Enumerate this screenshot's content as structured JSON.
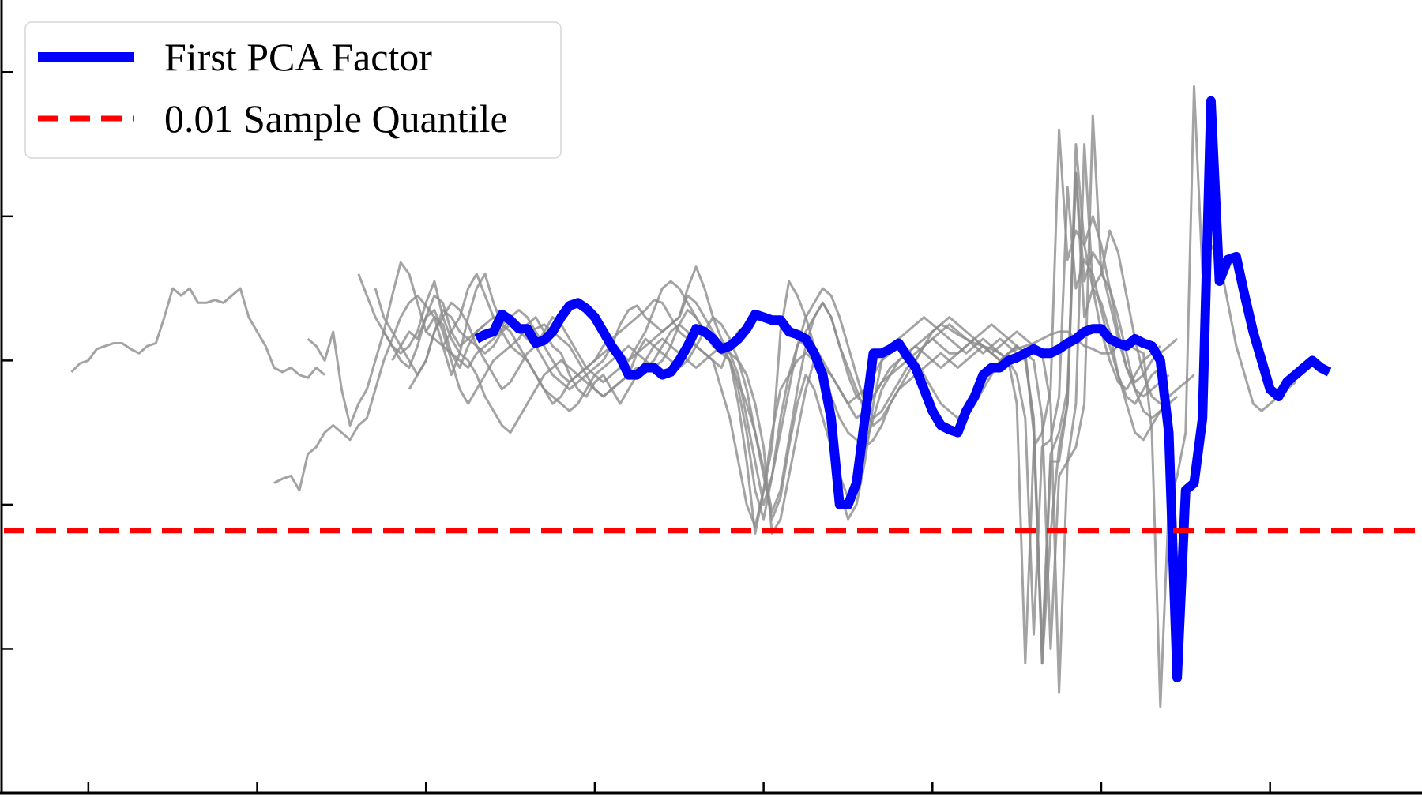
{
  "chart_data": {
    "type": "line",
    "title": "",
    "xlabel": "",
    "ylabel": "",
    "x_range": [
      0,
      168
    ],
    "ylim": [
      -3.0,
      2.5
    ],
    "y_ticks": [
      -3.0,
      -2.0,
      -1.0,
      0.0,
      1.0,
      2.0
    ],
    "x_ticks": [
      10,
      30,
      50,
      70,
      90,
      110,
      130,
      150
    ],
    "grid": false,
    "legend": {
      "placement": "top-left",
      "entries": [
        {
          "label": "First PCA Factor",
          "color": "#0000ff",
          "style": "solid"
        },
        {
          "label": "0.01 Sample Quantile",
          "color": "#ff0000",
          "style": "dashed"
        }
      ]
    },
    "quantile_line": {
      "name": "0.01 Sample Quantile",
      "y": -1.18,
      "color": "#ff0000"
    },
    "series": [
      {
        "name": "First PCA Factor",
        "color": "#0000ff",
        "x_start": 56,
        "values": [
          0.15,
          0.18,
          0.2,
          0.32,
          0.28,
          0.22,
          0.22,
          0.12,
          0.14,
          0.2,
          0.3,
          0.38,
          0.4,
          0.36,
          0.3,
          0.2,
          0.1,
          0.02,
          -0.1,
          -0.1,
          -0.05,
          -0.05,
          -0.1,
          -0.08,
          0.0,
          0.1,
          0.22,
          0.2,
          0.15,
          0.08,
          0.1,
          0.15,
          0.22,
          0.32,
          0.3,
          0.28,
          0.28,
          0.2,
          0.18,
          0.15,
          0.05,
          -0.1,
          -0.4,
          -1.0,
          -1.0,
          -0.85,
          -0.4,
          0.05,
          0.05,
          0.08,
          0.12,
          0.03,
          -0.05,
          -0.2,
          -0.35,
          -0.45,
          -0.48,
          -0.5,
          -0.35,
          -0.25,
          -0.1,
          -0.05,
          -0.05,
          0.0,
          0.02,
          0.05,
          0.08,
          0.05,
          0.05,
          0.08,
          0.12,
          0.15,
          0.2,
          0.22,
          0.22,
          0.15,
          0.12,
          0.1,
          0.15,
          0.12,
          0.1,
          0.0,
          -0.5,
          -2.2,
          -0.9,
          -0.85,
          -0.4,
          1.8,
          0.55,
          0.7,
          0.72,
          0.45,
          0.2,
          0.0,
          -0.2,
          -0.25,
          -0.15,
          -0.1,
          -0.05,
          0.0,
          -0.05,
          -0.08
        ]
      }
    ],
    "background_series": [
      {
        "x_start": 8,
        "values": [
          -0.08,
          -0.02,
          0.0,
          0.08,
          0.1,
          0.12,
          0.12,
          0.08,
          0.05,
          0.1,
          0.12,
          0.3,
          0.5,
          0.45,
          0.5,
          0.4,
          0.4,
          0.42,
          0.4,
          0.45,
          0.5,
          0.3,
          0.2,
          0.1,
          -0.05,
          -0.08,
          -0.05,
          -0.1,
          -0.12,
          -0.05,
          -0.1
        ]
      },
      {
        "x_start": 32,
        "values": [
          -0.85,
          -0.82,
          -0.8,
          -0.9,
          -0.65,
          -0.6,
          -0.5,
          -0.45,
          -0.5,
          -0.55,
          -0.45,
          -0.4,
          -0.2,
          0.0,
          0.15,
          0.3,
          0.4,
          0.45,
          0.38,
          0.3,
          0.25,
          0.05,
          -0.05,
          0.1,
          0.2,
          0.25
        ]
      },
      {
        "x_start": 36,
        "values": [
          0.15,
          0.1,
          0.0,
          0.2,
          -0.2,
          -0.45,
          -0.3,
          -0.2,
          0.0,
          0.2,
          0.45,
          0.68,
          0.6,
          0.4,
          0.2,
          0.15,
          0.1,
          0.05,
          0.0,
          -0.05,
          0.05,
          0.1,
          0.15,
          0.22,
          0.28,
          0.25,
          0.2,
          0.22,
          0.25,
          0.2,
          0.15,
          0.1,
          0.0,
          -0.1,
          -0.2,
          -0.25,
          -0.2,
          -0.15,
          -0.1,
          -0.05,
          -0.05,
          0.0,
          0.1,
          0.2,
          0.25,
          0.2,
          0.1,
          0.05,
          0.0,
          -0.05,
          0.1,
          0.2,
          0.25,
          0.3,
          0.32,
          0.3,
          0.25,
          0.2,
          0.15,
          0.1,
          0.0,
          -0.1,
          -0.5,
          -0.9,
          -1.1,
          -1.0,
          -0.7,
          -0.3,
          0.0,
          0.05,
          0.1,
          0.08,
          0.0,
          -0.1,
          -0.2,
          -0.3,
          -0.35,
          -0.4,
          -0.35,
          -0.3,
          -0.2,
          -0.1,
          0.0,
          0.05,
          0.08,
          0.1,
          0.12,
          0.15,
          0.18,
          0.2,
          0.2,
          0.15,
          0.1,
          0.08,
          0.05,
          0.05,
          0.1,
          0.12,
          0.08,
          0.05,
          -0.5,
          -2.4,
          -1.0,
          -0.8,
          -0.5,
          1.9,
          0.6,
          0.8,
          0.7,
          0.4,
          0.1,
          -0.1,
          -0.3,
          -0.35,
          -0.3,
          -0.25,
          -0.2,
          -0.15
        ]
      },
      {
        "x_start": 42,
        "values": [
          0.6,
          0.45,
          0.3,
          0.2,
          0.1,
          0.0,
          -0.05,
          0.1,
          0.3,
          0.35,
          0.2,
          0.0,
          -0.2,
          -0.3,
          -0.2,
          -0.1,
          0.0,
          0.05,
          0.1,
          0.15,
          0.25,
          0.3,
          0.2,
          0.1,
          0.05,
          -0.1,
          -0.2,
          -0.25,
          -0.15,
          -0.1,
          -0.2,
          -0.3,
          -0.2,
          -0.1,
          0.0,
          0.1,
          0.15,
          0.1,
          0.05,
          0.0,
          -0.05,
          0.0,
          0.05,
          0.1,
          0.05,
          0.0,
          -0.1,
          -0.3,
          -0.6,
          -1.2,
          -1.1,
          -0.8,
          -0.5,
          -0.2,
          0.0,
          -0.1,
          -0.25,
          -0.4,
          -0.5,
          -0.55,
          -0.6,
          -0.55,
          -0.45,
          -0.3,
          -0.2,
          -0.15,
          -0.1,
          -0.05,
          0.0,
          0.05,
          0.0,
          -0.05,
          0.0,
          0.05,
          0.1,
          0.05,
          0.0,
          0.05,
          0.1,
          0.05,
          0.0,
          -0.4,
          -2.0,
          -0.8,
          -0.7,
          -0.3,
          1.5,
          0.5,
          0.6,
          0.5,
          0.3,
          0.05,
          -0.2,
          -0.35,
          -0.4,
          -0.35,
          -0.3,
          -0.25
        ]
      },
      {
        "x_start": 44,
        "values": [
          0.5,
          0.3,
          0.2,
          0.1,
          0.0,
          -0.1,
          0.0,
          0.2,
          0.35,
          0.3,
          0.2,
          0.15,
          0.1,
          0.05,
          0.1,
          0.2,
          0.25,
          0.2,
          0.15,
          0.1,
          0.0,
          -0.1,
          -0.15,
          -0.2,
          -0.15,
          -0.1,
          -0.05,
          0.0,
          0.1,
          0.25,
          0.35,
          0.38,
          0.3,
          0.25,
          0.2,
          0.25,
          0.3,
          0.45,
          0.4,
          0.3,
          0.2,
          0.1,
          0.0,
          -0.3,
          -0.7,
          -1.2,
          -0.9,
          -0.6,
          0.2,
          0.55,
          0.45,
          0.3,
          0.1,
          0.0,
          -0.1,
          -0.2,
          -0.3,
          -0.25,
          -0.2,
          -0.1,
          0.0,
          0.1,
          0.15,
          0.2,
          0.25,
          0.3,
          0.25,
          0.2,
          0.15,
          0.1,
          0.05,
          0.1,
          0.15,
          0.1,
          0.05,
          0.0,
          -0.3,
          -2.1,
          -0.6,
          -0.5,
          -0.2,
          1.6,
          0.7,
          0.9,
          0.8,
          0.5,
          0.2,
          0.0,
          -0.15,
          -0.2,
          -0.1,
          0.0,
          0.05,
          0.1
        ]
      },
      {
        "x_start": 45,
        "values": [
          0.2,
          0.1,
          0.05,
          0.1,
          0.2,
          0.4,
          0.55,
          0.3,
          0.15,
          0.05,
          0.0,
          -0.1,
          -0.25,
          -0.35,
          -0.45,
          -0.5,
          -0.4,
          -0.3,
          -0.2,
          -0.1,
          -0.05,
          0.0,
          -0.05,
          -0.1,
          -0.15,
          -0.2,
          -0.25,
          -0.2,
          -0.15,
          -0.1,
          0.05,
          0.15,
          0.1,
          0.05,
          0.0,
          -0.05,
          0.0,
          0.1,
          0.2,
          0.3,
          0.25,
          0.15,
          0.0,
          -0.2,
          -0.5,
          -0.8,
          -1.1,
          -0.95,
          -0.6,
          -0.3,
          -0.1,
          -0.2,
          -0.4,
          -0.6,
          -0.8,
          -0.95,
          -0.8,
          -0.6,
          -0.4,
          -0.2,
          -0.1,
          0.0,
          0.05,
          0.1,
          0.05,
          0.0,
          -0.05,
          0.0,
          0.05,
          0.1,
          0.15,
          0.1,
          0.05,
          0.0,
          0.05,
          0.1,
          0.05,
          -0.5,
          -2.1,
          -1.2,
          -0.6,
          -0.3,
          1.3,
          0.3,
          0.5,
          0.4,
          0.2,
          -0.1,
          -0.3,
          -0.5,
          -0.55,
          -0.45,
          -0.35,
          -0.3
        ]
      },
      {
        "x_start": 46,
        "values": [
          0.0,
          0.1,
          0.2,
          0.15,
          0.3,
          0.45,
          0.4,
          0.2,
          0.1,
          0.15,
          0.2,
          0.25,
          0.3,
          0.25,
          0.2,
          0.1,
          0.0,
          -0.1,
          -0.2,
          -0.3,
          -0.25,
          -0.15,
          -0.1,
          -0.05,
          0.0,
          0.1,
          0.15,
          0.2,
          0.25,
          0.3,
          0.35,
          0.42,
          0.4,
          0.3,
          0.2,
          0.15,
          0.1,
          0.05,
          0.0,
          -0.2,
          -0.4,
          -0.7,
          -1.0,
          -1.15,
          -0.9,
          -0.5,
          -0.2,
          -0.1,
          0.0,
          0.05,
          0.0,
          -0.05,
          -0.1,
          -0.2,
          -0.3,
          -0.4,
          -0.35,
          -0.25,
          -0.15,
          -0.05,
          0.0,
          0.05,
          0.1,
          0.15,
          0.2,
          0.25,
          0.22,
          0.18,
          0.15,
          0.12,
          0.1,
          0.08,
          0.05,
          0.0,
          -0.1,
          -0.4,
          -1.9,
          -0.6,
          -0.55,
          -0.25,
          1.2,
          0.5,
          0.7,
          0.6,
          0.35,
          0.1,
          -0.1,
          -0.25,
          -0.3,
          -0.2,
          -0.1,
          -0.05
        ]
      },
      {
        "x_start": 48,
        "values": [
          -0.2,
          -0.1,
          0.0,
          0.2,
          0.3,
          0.4,
          0.35,
          0.25,
          0.1,
          0.0,
          -0.1,
          -0.2,
          -0.15,
          -0.05,
          0.05,
          0.1,
          0.2,
          0.3,
          0.25,
          0.15,
          0.05,
          -0.05,
          -0.1,
          -0.15,
          -0.1,
          -0.05,
          0.0,
          0.1,
          0.2,
          0.35,
          0.5,
          0.55,
          0.5,
          0.4,
          0.3,
          0.2,
          0.1,
          0.05,
          0.0,
          -0.2,
          -0.5,
          -0.9,
          -1.1,
          -0.8,
          -0.4,
          -0.1,
          0.1,
          0.2,
          0.3,
          0.4,
          0.3,
          0.1,
          -0.05,
          -0.2,
          -0.35,
          -0.45,
          -0.4,
          -0.3,
          -0.2,
          -0.1,
          0.0,
          0.1,
          0.2,
          0.25,
          0.3,
          0.25,
          0.2,
          0.15,
          0.1,
          0.05,
          0.1,
          0.15,
          0.2,
          0.15,
          0.1,
          0.05,
          -0.3,
          -2.3,
          -0.7,
          -0.6,
          -0.3,
          1.7,
          0.6,
          0.9,
          0.75,
          0.45,
          0.15,
          -0.1,
          -0.25,
          -0.3,
          -0.25,
          -0.2,
          -0.15,
          -0.1
        ]
      },
      {
        "x_start": 50,
        "values": [
          0.2,
          0.3,
          0.1,
          -0.1,
          0.05,
          0.3,
          0.5,
          0.6,
          0.4,
          0.25,
          0.3,
          0.35,
          0.3,
          0.2,
          0.1,
          0.0,
          -0.1,
          -0.15,
          -0.1,
          -0.05,
          0.0,
          0.05,
          0.1,
          0.05,
          0.0,
          0.05,
          0.1,
          0.15,
          0.2,
          0.25,
          0.3,
          0.5,
          0.65,
          0.5,
          0.3,
          0.15,
          0.05,
          -0.1,
          -0.4,
          -0.7,
          -1.0,
          -0.8,
          -0.5,
          -0.2,
          0.1,
          0.3,
          0.4,
          0.5,
          0.45,
          0.3,
          0.1,
          -0.1,
          -0.3,
          -0.4,
          -0.35,
          -0.25,
          -0.15,
          -0.05,
          0.0,
          0.1,
          0.15,
          0.2,
          0.25,
          0.2,
          0.15,
          0.1,
          0.05,
          0.1,
          0.15,
          0.1,
          0.05,
          0.0,
          -0.4,
          -2.1,
          -0.7,
          -0.7,
          -0.3,
          1.5,
          0.8,
          1.0,
          0.8,
          0.5,
          0.2,
          -0.05,
          -0.15,
          -0.1,
          0.0,
          0.05,
          0.1,
          0.15
        ]
      },
      {
        "x_start": 52,
        "values": [
          0.1,
          0.2,
          0.3,
          0.5,
          0.6,
          0.45,
          0.3,
          0.2,
          0.1,
          0.05,
          0.0,
          -0.1,
          -0.2,
          -0.25,
          -0.3,
          -0.35,
          -0.3,
          -0.2,
          -0.1,
          -0.05,
          0.0,
          0.05,
          0.1,
          0.05,
          0.0,
          -0.05,
          0.0,
          0.1,
          0.25,
          0.35,
          0.3,
          0.2,
          0.15,
          0.1,
          0.0,
          -0.15,
          -0.3,
          -0.5,
          -0.75,
          -1.05,
          -0.9,
          -0.55,
          -0.2,
          0.1,
          0.3,
          0.4,
          0.3,
          0.1,
          -0.1,
          -0.25,
          -0.3,
          -0.25,
          -0.15,
          -0.1,
          -0.05,
          0.0,
          0.05,
          0.1,
          0.15,
          0.1,
          0.05,
          0.05,
          0.1,
          0.15,
          0.2,
          0.25,
          0.2,
          0.15,
          0.1,
          0.05,
          -0.45,
          -2.0,
          -0.65,
          -0.5,
          -0.2,
          1.3,
          0.55,
          0.75,
          0.65,
          0.4,
          0.15,
          -0.05,
          -0.2,
          -0.25,
          -0.2,
          -0.15,
          -0.1
        ]
      }
    ]
  }
}
